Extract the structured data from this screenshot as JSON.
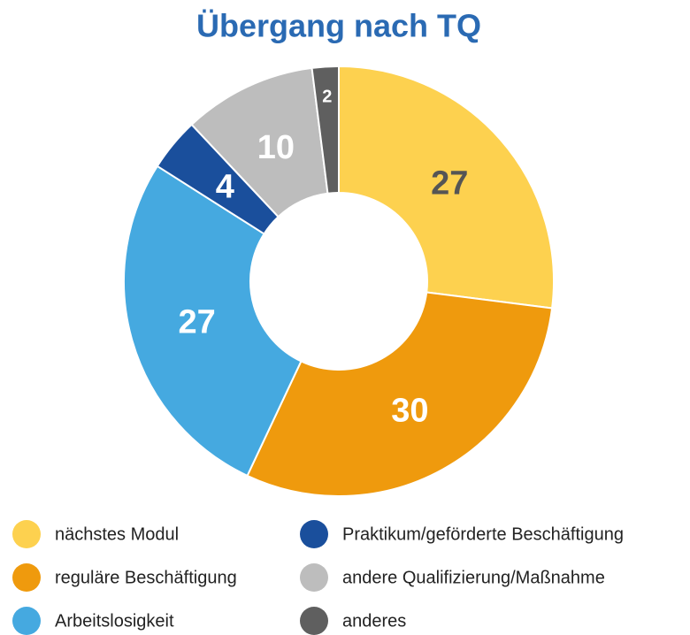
{
  "chart_data": {
    "type": "pie",
    "title": "Übergang nach TQ",
    "categories": [
      "nächstes Modul",
      "reguläre Beschäftigung",
      "Arbeitslosigkeit",
      "Praktikum/geförderte Beschäftigung",
      "andere Qualifizierung/Maßnahme",
      "anderes"
    ],
    "values": [
      27,
      30,
      27,
      4,
      10,
      2
    ],
    "colors": [
      "#fdd14f",
      "#ef9a0d",
      "#45a9e0",
      "#1a4f9c",
      "#bdbdbd",
      "#5f5f5f"
    ],
    "donut": true
  }
}
